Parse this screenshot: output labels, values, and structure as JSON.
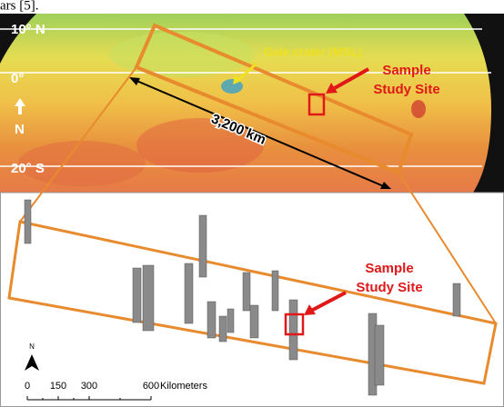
{
  "caption": "ars [5].",
  "top_map": {
    "latitudes": [
      "10° N",
      "0°",
      "20° S"
    ],
    "north": "N",
    "gale": "Gale crater (MSL)",
    "site": [
      "Sample",
      "Study Site"
    ],
    "distance": "3,200 km"
  },
  "detail_map": {
    "site": [
      "Sample",
      "Study Site"
    ],
    "north": "N",
    "scale": [
      0,
      150,
      300,
      600
    ],
    "unit": "Kilometers"
  }
}
